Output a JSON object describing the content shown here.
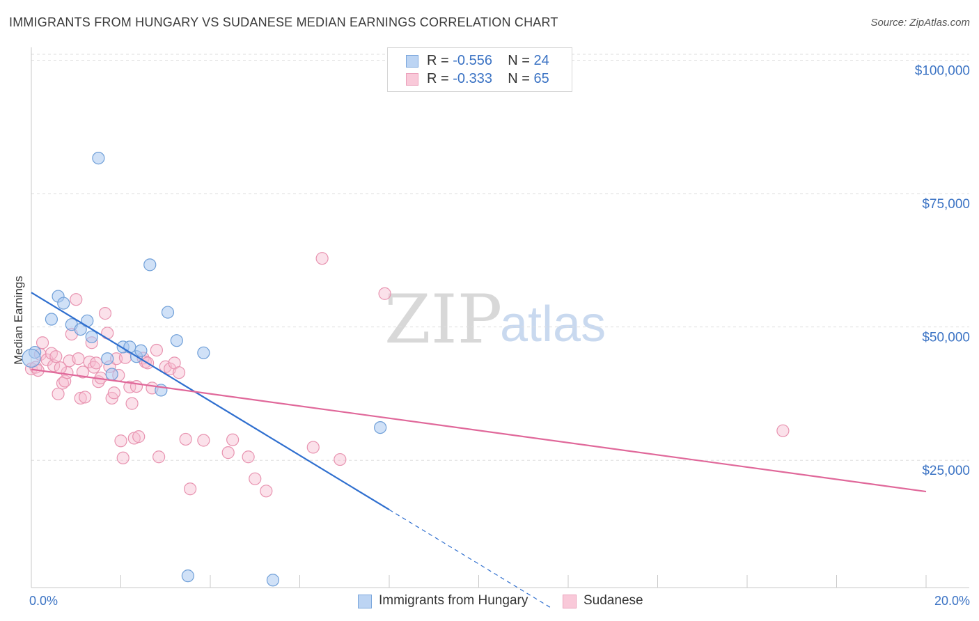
{
  "title": "IMMIGRANTS FROM HUNGARY VS SUDANESE MEDIAN EARNINGS CORRELATION CHART",
  "source": "Source: ZipAtlas.com",
  "watermark": {
    "zip": "ZIP",
    "atlas": "atlas"
  },
  "legend": {
    "rows": [
      {
        "r_label": "R = ",
        "r_value": "-0.556",
        "n_label": "N = ",
        "n_value": "24"
      },
      {
        "r_label": "R = ",
        "r_value": "-0.333",
        "n_label": "N = ",
        "n_value": "65"
      }
    ]
  },
  "bottom_legend": {
    "series1": "Immigrants from Hungary",
    "series2": "Sudanese"
  },
  "colors": {
    "series1_fill": "#a9c8f0",
    "series1_stroke": "#6f9fd8",
    "series1_line": "#2f6fcf",
    "series2_fill": "#f7bcd0",
    "series2_stroke": "#e893b0",
    "series2_line": "#e0689a",
    "tick": "#3b73c4",
    "grid": "#dedede"
  },
  "chart_data": {
    "type": "scatter",
    "title": "IMMIGRANTS FROM HUNGARY VS SUDANESE MEDIAN EARNINGS CORRELATION CHART",
    "xlabel": "",
    "ylabel": "Median Earnings",
    "xlim": [
      0,
      20
    ],
    "ylim": [
      0,
      105000
    ],
    "x_tick_labels": [
      "0.0%",
      "20.0%"
    ],
    "y_ticks": [
      {
        "value": 25000,
        "label": "$25,000"
      },
      {
        "value": 50000,
        "label": "$50,000"
      },
      {
        "value": 75000,
        "label": "$75,000"
      },
      {
        "value": 100000,
        "label": "$100,000"
      }
    ],
    "series": [
      {
        "name": "Immigrants from Hungary",
        "R": -0.556,
        "N": 24,
        "trend": {
          "x0": 0.0,
          "y0": 58800,
          "x1": 8.0,
          "y1": 18100,
          "dash_to_x": 11.6
        },
        "points": [
          [
            0.08,
            47600
          ],
          [
            0.45,
            53800
          ],
          [
            0.6,
            58100
          ],
          [
            0.72,
            56800
          ],
          [
            0.9,
            52800
          ],
          [
            1.1,
            51900
          ],
          [
            1.25,
            53500
          ],
          [
            1.35,
            50500
          ],
          [
            1.5,
            84000
          ],
          [
            1.7,
            46400
          ],
          [
            1.8,
            43500
          ],
          [
            2.05,
            48600
          ],
          [
            2.2,
            48600
          ],
          [
            2.35,
            46800
          ],
          [
            2.45,
            47900
          ],
          [
            2.65,
            64000
          ],
          [
            2.9,
            40500
          ],
          [
            3.05,
            55100
          ],
          [
            3.25,
            49800
          ],
          [
            3.5,
            5700
          ],
          [
            3.85,
            47500
          ],
          [
            5.4,
            4900
          ],
          [
            7.8,
            33500
          ],
          [
            0.0,
            46500
          ]
        ]
      },
      {
        "name": "Sudanese",
        "R": -0.333,
        "N": 65,
        "trend": {
          "x0": 0.0,
          "y0": 44400,
          "x1": 20.0,
          "y1": 21500
        },
        "points": [
          [
            0.0,
            44500
          ],
          [
            0.1,
            44800
          ],
          [
            0.2,
            47200
          ],
          [
            0.25,
            49400
          ],
          [
            0.35,
            46200
          ],
          [
            0.45,
            47400
          ],
          [
            0.5,
            45100
          ],
          [
            0.55,
            46800
          ],
          [
            0.6,
            39800
          ],
          [
            0.7,
            41800
          ],
          [
            0.75,
            42200
          ],
          [
            0.8,
            43800
          ],
          [
            0.85,
            46000
          ],
          [
            0.9,
            51000
          ],
          [
            1.0,
            57500
          ],
          [
            1.05,
            46400
          ],
          [
            1.1,
            39000
          ],
          [
            1.15,
            43900
          ],
          [
            1.2,
            39200
          ],
          [
            1.3,
            45800
          ],
          [
            1.35,
            49400
          ],
          [
            1.4,
            44800
          ],
          [
            1.45,
            45600
          ],
          [
            1.5,
            42100
          ],
          [
            1.55,
            42800
          ],
          [
            1.65,
            54900
          ],
          [
            1.7,
            51200
          ],
          [
            1.75,
            44900
          ],
          [
            1.8,
            39000
          ],
          [
            1.85,
            40000
          ],
          [
            1.9,
            46400
          ],
          [
            1.95,
            43300
          ],
          [
            2.0,
            31000
          ],
          [
            2.05,
            27800
          ],
          [
            2.1,
            46600
          ],
          [
            2.2,
            41100
          ],
          [
            2.25,
            38000
          ],
          [
            2.3,
            31500
          ],
          [
            2.35,
            41200
          ],
          [
            2.4,
            31800
          ],
          [
            2.5,
            46500
          ],
          [
            2.55,
            45800
          ],
          [
            2.6,
            45600
          ],
          [
            2.7,
            40900
          ],
          [
            2.8,
            48000
          ],
          [
            2.85,
            28000
          ],
          [
            3.0,
            44900
          ],
          [
            3.1,
            44500
          ],
          [
            3.2,
            45600
          ],
          [
            3.3,
            43800
          ],
          [
            3.45,
            31300
          ],
          [
            3.55,
            22000
          ],
          [
            3.85,
            31100
          ],
          [
            4.4,
            28800
          ],
          [
            4.5,
            31200
          ],
          [
            4.85,
            28000
          ],
          [
            5.0,
            23900
          ],
          [
            5.25,
            21600
          ],
          [
            6.3,
            29800
          ],
          [
            6.5,
            65200
          ],
          [
            6.9,
            27500
          ],
          [
            7.9,
            58600
          ],
          [
            16.8,
            32900
          ],
          [
            0.15,
            44200
          ],
          [
            0.65,
            44700
          ]
        ]
      }
    ]
  }
}
